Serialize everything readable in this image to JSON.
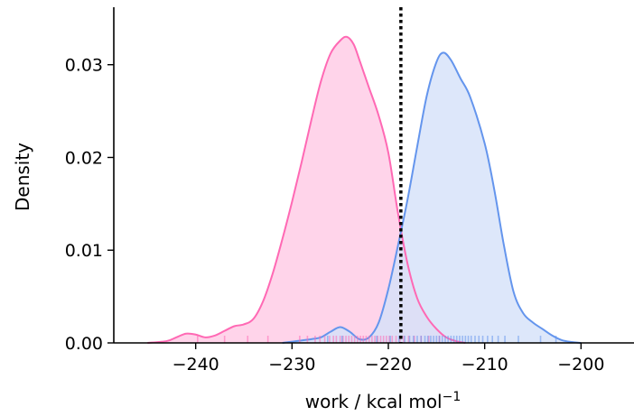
{
  "chart_data": {
    "type": "area",
    "title": "",
    "xlabel": "work / kcal mol",
    "xlabel_superscript": "−1",
    "ylabel": "Density",
    "xlim": [
      -248.5,
      -194.5
    ],
    "ylim": [
      0,
      0.0362
    ],
    "xticks": [
      -240,
      -230,
      -220,
      -210,
      -200
    ],
    "xtick_labels": [
      "−240",
      "−230",
      "−220",
      "−210",
      "−200"
    ],
    "yticks": [
      0.0,
      0.01,
      0.02,
      0.03
    ],
    "ytick_labels": [
      "0.00",
      "0.01",
      "0.02",
      "0.03"
    ],
    "grid": false,
    "legend": "none",
    "vline": {
      "x": -218.7,
      "style": "dotted",
      "color": "#000000"
    },
    "series": [
      {
        "color": "#ff69b4",
        "fill": "#ffd4ea",
        "x": [
          -245,
          -243,
          -242,
          -241,
          -240,
          -239,
          -238,
          -237,
          -236,
          -235,
          -234,
          -233,
          -232,
          -231,
          -230,
          -229,
          -228,
          -227,
          -226,
          -225,
          -224.3,
          -223.6,
          -223,
          -222.5,
          -222,
          -221,
          -220,
          -219,
          -218,
          -217,
          -216,
          -215,
          -214,
          -213,
          -212
        ],
        "y": [
          0.0,
          0.0002,
          0.0006,
          0.001,
          0.0009,
          0.0006,
          0.0008,
          0.0013,
          0.0018,
          0.002,
          0.0026,
          0.0045,
          0.0075,
          0.0112,
          0.0152,
          0.0195,
          0.024,
          0.0282,
          0.0312,
          0.0326,
          0.033,
          0.0322,
          0.0305,
          0.029,
          0.0275,
          0.0245,
          0.0205,
          0.014,
          0.0085,
          0.0048,
          0.0028,
          0.0015,
          0.0006,
          0.0002,
          0.0
        ]
      },
      {
        "color": "#6495ed",
        "fill": "#d4e1f9",
        "x": [
          -231,
          -228,
          -227,
          -226,
          -225,
          -224,
          -223,
          -222,
          -221,
          -220,
          -219,
          -218,
          -217,
          -216,
          -215,
          -214.3,
          -213.5,
          -212.5,
          -211.5,
          -210,
          -209,
          -208,
          -207,
          -206,
          -205,
          -204,
          -203,
          -202,
          -201,
          -200
        ],
        "y": [
          0.0,
          0.0004,
          0.0006,
          0.0012,
          0.0017,
          0.0012,
          0.0004,
          0.0006,
          0.0022,
          0.0058,
          0.0105,
          0.0155,
          0.0212,
          0.0267,
          0.0303,
          0.0313,
          0.0305,
          0.0285,
          0.0265,
          0.0215,
          0.0165,
          0.0105,
          0.0055,
          0.0032,
          0.0022,
          0.0015,
          0.0008,
          0.0003,
          0.0001,
          0.0
        ]
      }
    ],
    "rug": [
      {
        "color": "#ff69b4",
        "x": [
          -239.8,
          -237,
          -234.6,
          -232.5,
          -229.2,
          -228.4,
          -227.6,
          -227.1,
          -226.6,
          -226.1,
          -225.7,
          -225.4,
          -225.0,
          -224.7,
          -224.4,
          -224.1,
          -223.8,
          -223.5,
          -223.2,
          -222.9,
          -222.6,
          -222.3,
          -222.0,
          -221.7,
          -221.4,
          -221.1,
          -220.8,
          -220.5,
          -220.2,
          -219.9,
          -219.6,
          -219.2,
          -218.8,
          -218.4,
          -217.9,
          -217.3,
          -216.6,
          -215.8,
          -214.7
        ]
      },
      {
        "color": "#6495ed",
        "x": [
          -226.3,
          -224.8,
          -221.2,
          -219.8,
          -218.9,
          -218.3,
          -217.8,
          -217.4,
          -217.0,
          -216.6,
          -216.2,
          -215.9,
          -215.6,
          -215.3,
          -215.0,
          -214.7,
          -214.4,
          -214.1,
          -213.8,
          -213.5,
          -213.2,
          -212.9,
          -212.6,
          -212.3,
          -212.0,
          -211.7,
          -211.4,
          -211.0,
          -210.6,
          -210.2,
          -209.7,
          -209.2,
          -208.6,
          -207.9,
          -206.5,
          -204.2,
          -202.6
        ]
      }
    ]
  }
}
